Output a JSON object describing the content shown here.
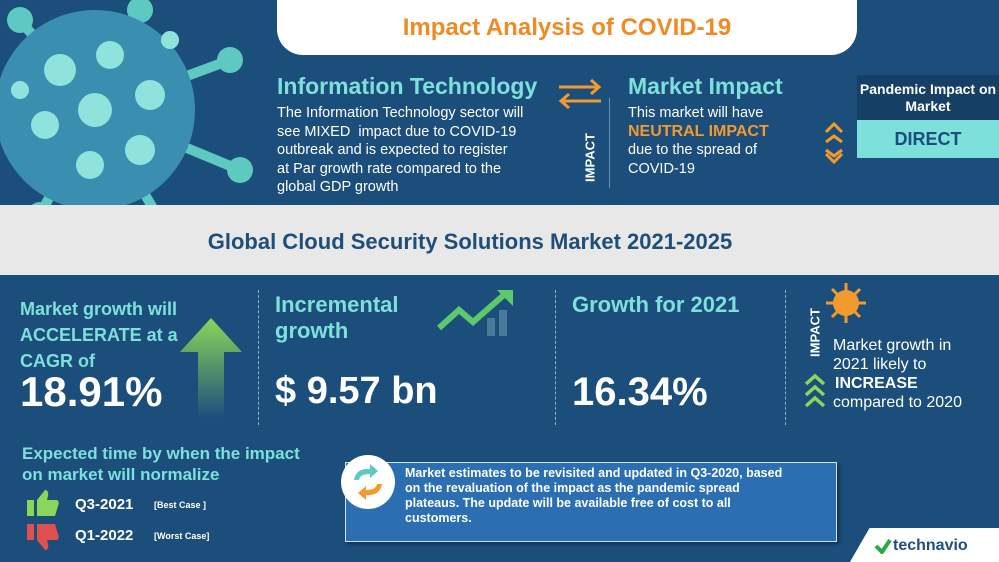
{
  "header": {
    "title": "Impact Analysis of COVID-19"
  },
  "sector": {
    "title": "Information Technology",
    "body": [
      "The Information Technology sector will",
      "see MIXED  impact due to COVID-19",
      "outbreak and is expected to register",
      "at Par growth rate compared to the",
      "global GDP growth"
    ]
  },
  "impact_label": "IMPACT",
  "market_impact": {
    "title": "Market Impact",
    "lines": [
      "This market will have",
      "NEUTRAL IMPACT",
      "due to the spread of",
      "COVID-19"
    ]
  },
  "pandemic_impact": {
    "label": "Pandemic Impact on Market",
    "value": "DIRECT"
  },
  "market_title": "Global Cloud Security Solutions Market 2021-2025",
  "kpis": [
    {
      "label": "Market growth will ACCELERATE at a CAGR of",
      "value": "18.91%"
    },
    {
      "label": "Incremental growth",
      "value": "$ 9.57 bn"
    },
    {
      "label": "Growth for 2021",
      "value": "16.34%"
    }
  ],
  "outlook": {
    "impact_label": "IMPACT",
    "lines": [
      "Market growth in",
      "2021 likely to",
      "INCREASE",
      "compared to 2020"
    ]
  },
  "normalization": {
    "title": "Expected time by when the impact on market will normalize",
    "best": {
      "period": "Q3-2021",
      "note": "[Best Case ]"
    },
    "worst": {
      "period": "Q1-2022",
      "note": "[Worst Case]"
    }
  },
  "notice": "Market estimates to be revisited and updated in Q3-2020, based on the revaluation of the impact as the pandemic spread plateaus. The update will be available free of cost to all customers.",
  "brand": "technavio"
}
